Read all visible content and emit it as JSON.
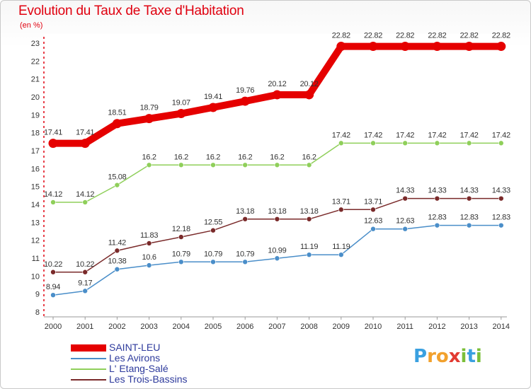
{
  "title": "Evolution du Taux de Taxe d'Habitation",
  "unit_label": "(en %)",
  "logo": {
    "letters": [
      "P",
      "r",
      "o",
      "x",
      "i",
      "t",
      "i"
    ],
    "colors": [
      "#3aa0e0",
      "#f2a12d",
      "#f2a12d",
      "#e23b32",
      "#7bbf3a",
      "#3aa0e0",
      "#7bbf3a"
    ]
  },
  "colors": {
    "title": "#e0000f",
    "grid_tick": "#e0000f",
    "text": "#2d3a9c"
  },
  "chart_data": {
    "type": "line",
    "title": "Evolution du Taux de Taxe d'Habitation",
    "ylabel": "(en %)",
    "xlabel": "",
    "ylim": [
      8,
      23
    ],
    "grid": false,
    "legend_position": "bottom-left",
    "categories": [
      "2000",
      "2001",
      "2002",
      "2003",
      "2004",
      "2005",
      "2006",
      "2007",
      "2008",
      "2009",
      "2010",
      "2011",
      "2012",
      "2013",
      "2014"
    ],
    "yticks": [
      "8",
      "9",
      "10",
      "11",
      "12",
      "13",
      "14",
      "15",
      "16",
      "17",
      "18",
      "19",
      "20",
      "21",
      "22",
      "23"
    ],
    "series": [
      {
        "name": "SAINT-LEU",
        "color": "#e50000",
        "values": [
          17.41,
          17.41,
          18.51,
          18.79,
          19.07,
          19.41,
          19.76,
          20.12,
          20.12,
          22.82,
          22.82,
          22.82,
          22.82,
          22.82,
          22.82
        ],
        "labels": [
          "17.41",
          "17.41",
          "18.51",
          "18.79",
          "19.07",
          "19.41",
          "19.76",
          "20.12",
          "20.12",
          "22.82",
          "22.82",
          "22.82",
          "22.82",
          "22.82",
          "22.82"
        ]
      },
      {
        "name": "Les Avirons",
        "color": "#4a8ec9",
        "values": [
          8.94,
          9.17,
          10.38,
          10.6,
          10.79,
          10.79,
          10.79,
          10.99,
          11.19,
          11.19,
          12.63,
          12.63,
          12.83,
          12.83,
          12.83
        ],
        "labels": [
          "8.94",
          "9.17",
          "10.38",
          "10.6",
          "10.79",
          "10.79",
          "10.79",
          "10.99",
          "11.19",
          "11.19",
          "12.63",
          "12.63",
          "12.83",
          "12.83",
          "12.83"
        ]
      },
      {
        "name": "L' Etang-Salé",
        "color": "#8fcf5a",
        "values": [
          14.12,
          14.12,
          15.08,
          16.2,
          16.2,
          16.2,
          16.2,
          16.2,
          16.2,
          17.42,
          17.42,
          17.42,
          17.42,
          17.42,
          17.42
        ],
        "labels": [
          "14.12",
          "14.12",
          "15.08",
          "16.2",
          "16.2",
          "16.2",
          "16.2",
          "16.2",
          "16.2",
          "17.42",
          "17.42",
          "17.42",
          "17.42",
          "17.42",
          "17.42"
        ]
      },
      {
        "name": "Les Trois-Bassins",
        "color": "#7a2a2a",
        "values": [
          10.22,
          10.22,
          11.42,
          11.83,
          12.18,
          12.55,
          13.18,
          13.18,
          13.18,
          13.71,
          13.71,
          14.33,
          14.33,
          14.33,
          14.33
        ],
        "labels": [
          "10.22",
          "10.22",
          "11.42",
          "11.83",
          "12.18",
          "12.55",
          "13.18",
          "13.18",
          "13.18",
          "13.71",
          "13.71",
          "14.33",
          "14.33",
          "14.33",
          "14.33"
        ]
      }
    ]
  }
}
